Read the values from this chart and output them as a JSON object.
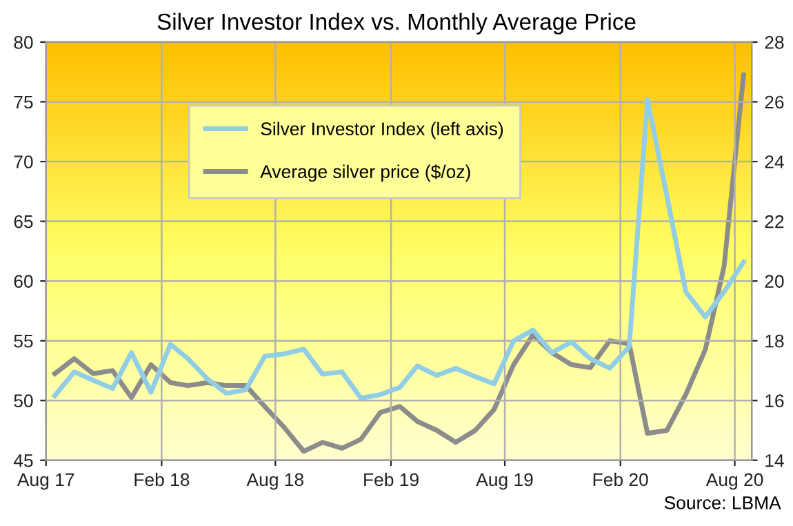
{
  "chart_data": {
    "type": "line",
    "title": "Silver Investor Index vs. Monthly Average Price",
    "x": [
      "2017-08-15",
      "2017-09-15",
      "2017-10-15",
      "2017-11-15",
      "2017-12-15",
      "2018-01-15",
      "2018-02-15",
      "2018-03-15",
      "2018-04-15",
      "2018-05-15",
      "2018-06-15",
      "2018-07-15",
      "2018-08-15",
      "2018-09-15",
      "2018-10-15",
      "2018-11-15",
      "2018-12-15",
      "2019-01-15",
      "2019-02-15",
      "2019-03-15",
      "2019-04-15",
      "2019-05-15",
      "2019-06-15",
      "2019-07-15",
      "2019-08-15",
      "2019-09-15",
      "2019-10-15",
      "2019-11-15",
      "2019-12-15",
      "2020-01-15",
      "2020-02-15",
      "2020-03-15",
      "2020-04-15",
      "2020-05-15",
      "2020-06-15",
      "2020-07-15",
      "2020-08-15"
    ],
    "series": [
      {
        "name": "Silver Investor Index (left axis)",
        "color": "#92cde6",
        "values": [
          50.4,
          52.4,
          51.7,
          51.0,
          54.0,
          50.7,
          54.7,
          53.5,
          51.8,
          50.6,
          50.9,
          53.7,
          53.9,
          54.3,
          52.2,
          52.4,
          50.2,
          50.5,
          51.1,
          52.9,
          52.1,
          52.7,
          52.0,
          51.4,
          55.0,
          55.9,
          54.0,
          54.9,
          53.5,
          52.7,
          54.5,
          75.2,
          67.1,
          59.1,
          57.0,
          59.1,
          61.6
        ]
      },
      {
        "name": "Average silver price ($/oz)",
        "color": "#8c8c8c",
        "axis": "y2",
        "values": [
          16.9,
          17.4,
          16.9,
          17.0,
          16.1,
          17.2,
          16.6,
          16.5,
          16.6,
          16.5,
          16.5,
          15.8,
          15.1,
          14.3,
          14.6,
          14.4,
          14.7,
          15.6,
          15.8,
          15.3,
          15.0,
          14.6,
          15.0,
          15.7,
          17.2,
          18.2,
          17.6,
          17.2,
          17.1,
          18.0,
          17.9,
          14.9,
          15.0,
          16.2,
          17.7,
          20.5,
          26.9
        ]
      }
    ],
    "xlim": [
      "2017-08-01",
      "2020-08-28"
    ],
    "xticks": [
      {
        "value": "2017-08-01",
        "label": "Aug 17"
      },
      {
        "value": "2018-02-01",
        "label": "Feb 18"
      },
      {
        "value": "2018-08-01",
        "label": "Aug 18"
      },
      {
        "value": "2019-02-01",
        "label": "Feb 19"
      },
      {
        "value": "2019-08-01",
        "label": "Aug 19"
      },
      {
        "value": "2020-02-01",
        "label": "Feb 20"
      },
      {
        "value": "2020-08-01",
        "label": "Aug 20"
      }
    ],
    "ylim": [
      45,
      80
    ],
    "yticks": [
      45,
      50,
      55,
      60,
      65,
      70,
      75,
      80
    ],
    "y2lim": [
      14,
      28
    ],
    "y2ticks": [
      14,
      16,
      18,
      20,
      22,
      24,
      26,
      28
    ],
    "grid": true,
    "legend": "top left",
    "marker": "none",
    "line_style": "solid",
    "annotations": [
      "Source: LBMA"
    ]
  }
}
